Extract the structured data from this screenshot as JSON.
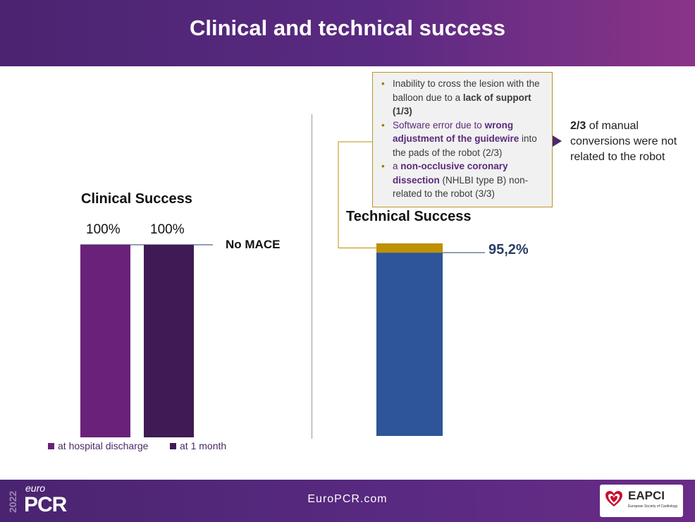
{
  "header": {
    "title": "Clinical and technical success"
  },
  "colors": {
    "discharge": "#6a2179",
    "one_month": "#3f1a55",
    "technical": "#2d5597",
    "failure": "#bf9000"
  },
  "chart_data": [
    {
      "type": "bar",
      "title": "Clinical Success",
      "categories": [
        "at hospital discharge",
        "at 1 month"
      ],
      "values": [
        100,
        100
      ],
      "value_labels": [
        "100%",
        "100%"
      ],
      "ylim": [
        0,
        100
      ],
      "legend": [
        "at hospital discharge",
        "at 1 month"
      ],
      "legend_placement": "bottom",
      "annotation": "No MACE",
      "grid": false
    },
    {
      "type": "bar",
      "stacked": true,
      "title": "Technical Success",
      "series": [
        {
          "values": [
            95.2
          ]
        },
        {
          "values": [
            4.8
          ]
        }
      ],
      "value_label": "95,2%",
      "ylim": [
        0,
        100
      ],
      "grid": false
    }
  ],
  "callout": {
    "item1": {
      "pre": "Inability to cross the lesion with the balloon due to a ",
      "bold": "lack of support (1/3)"
    },
    "item2": {
      "pre": "Software error due to ",
      "bold": "wrong adjustment of the guidewire",
      "post": " into the pads of the robot (2/3)"
    },
    "item3": {
      "pre": "a ",
      "bold": "non-occlusive coronary dissection",
      "post": " (NHLBI type B) non-related to the robot (3/3)"
    }
  },
  "side_note": {
    "bold": "2/3",
    "rest": " of manual conversions were not related to the robot"
  },
  "footer": {
    "url": "EuroPCR.com",
    "logo_year": "2022",
    "logo_euro": "euro",
    "logo_pcr": "PCR",
    "eapci": "EAPCI",
    "eapci_sub": "European Society of Cardiology"
  }
}
